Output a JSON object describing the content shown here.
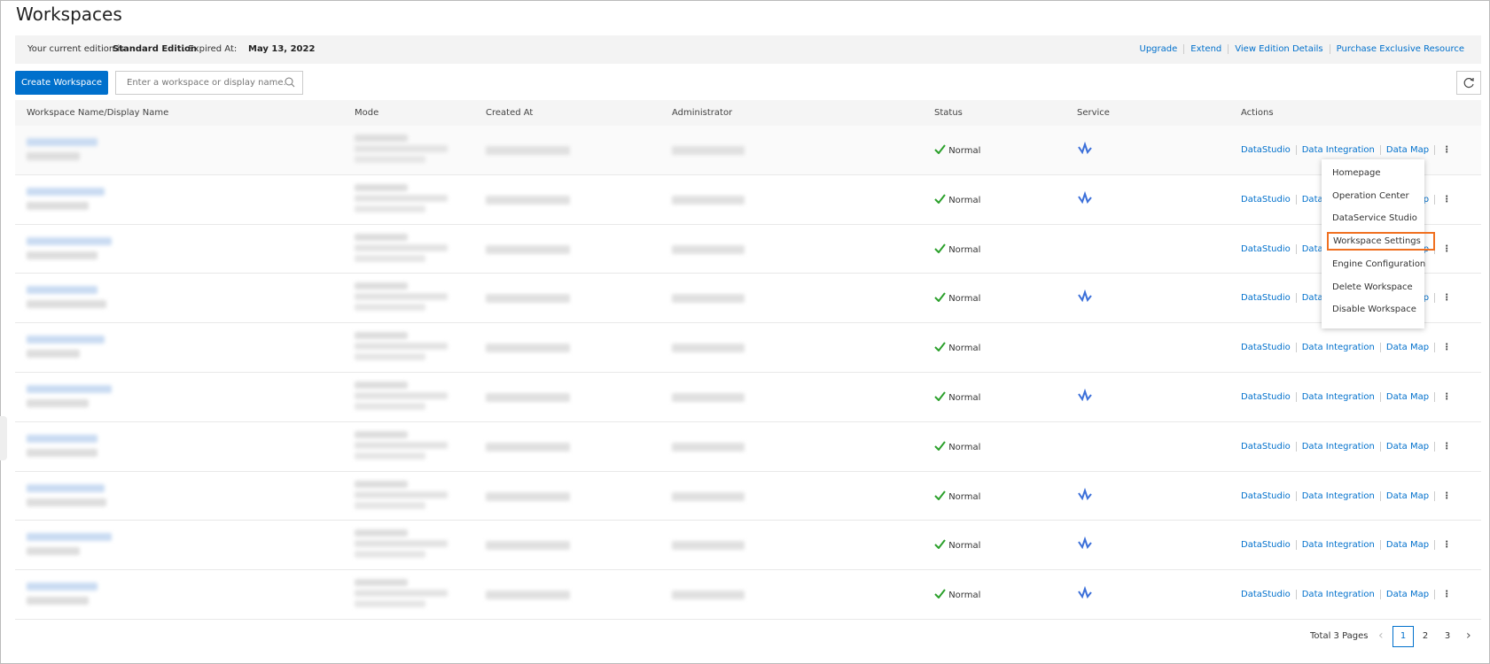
{
  "header": {
    "title": "Workspaces"
  },
  "edition_bar": {
    "prefix": "Your current edition is",
    "edition": "Standard Edition",
    "expired_label": ". Expired At:",
    "expired_date": "May 13, 2022",
    "links": [
      "Upgrade",
      "Extend",
      "View Edition Details",
      "Purchase Exclusive Resource"
    ]
  },
  "toolbar": {
    "create_button": "Create Workspace",
    "search_placeholder": "Enter a workspace or display name."
  },
  "table": {
    "columns": [
      "Workspace Name/Display Name",
      "Mode",
      "Created At",
      "Administrator",
      "Status",
      "Service",
      "Actions"
    ],
    "rows": [
      {
        "status": "Normal",
        "service": true,
        "actions": [
          "DataStudio",
          "Data Integration",
          "Data Map"
        ]
      },
      {
        "status": "Normal",
        "service": true,
        "actions": [
          "DataStudio",
          "Data Integration",
          "Data Map"
        ]
      },
      {
        "status": "Normal",
        "service": false,
        "actions": [
          "DataStudio",
          "Data Integration",
          "Data Map"
        ]
      },
      {
        "status": "Normal",
        "service": true,
        "actions": [
          "DataStudio",
          "Data Integration",
          "Data Map"
        ]
      },
      {
        "status": "Normal",
        "service": false,
        "actions": [
          "DataStudio",
          "Data Integration",
          "Data Map"
        ]
      },
      {
        "status": "Normal",
        "service": true,
        "actions": [
          "DataStudio",
          "Data Integration",
          "Data Map"
        ]
      },
      {
        "status": "Normal",
        "service": false,
        "actions": [
          "DataStudio",
          "Data Integration",
          "Data Map"
        ]
      },
      {
        "status": "Normal",
        "service": true,
        "actions": [
          "DataStudio",
          "Data Integration",
          "Data Map"
        ]
      },
      {
        "status": "Normal",
        "service": true,
        "actions": [
          "DataStudio",
          "Data Integration",
          "Data Map"
        ]
      },
      {
        "status": "Normal",
        "service": true,
        "actions": [
          "DataStudio",
          "Data Integration",
          "Data Map"
        ]
      }
    ]
  },
  "menu": {
    "items": [
      "Homepage",
      "Operation Center",
      "DataService Studio",
      "Workspace Settings",
      "Engine Configuration",
      "Delete Workspace",
      "Disable Workspace"
    ],
    "highlighted": 3
  },
  "pagination": {
    "total": "Total 3 Pages",
    "pages": [
      1,
      2,
      3
    ],
    "current": 1
  }
}
